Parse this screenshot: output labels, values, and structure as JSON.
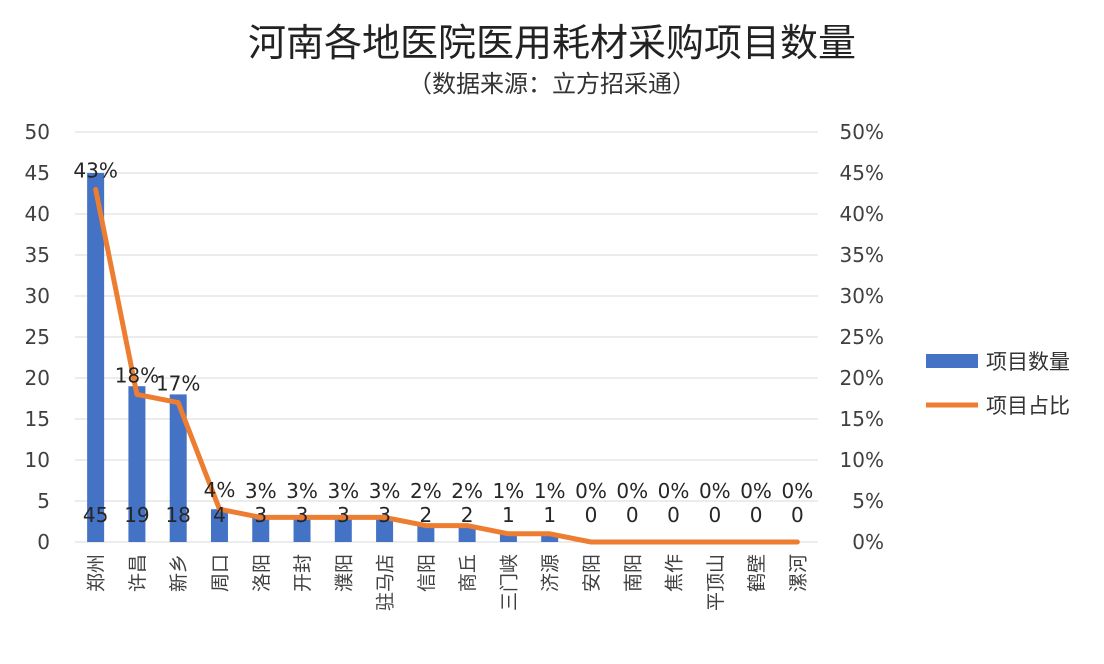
{
  "chart_data": {
    "type": "bar",
    "title": "河南各地医院医用耗材采购项目数量",
    "subtitle": "（数据来源：立方招采通）",
    "categories": [
      "郑州",
      "许昌",
      "新乡",
      "周口",
      "洛阳",
      "开封",
      "濮阳",
      "驻马店",
      "信阳",
      "商丘",
      "三门峡",
      "济源",
      "安阳",
      "南阳",
      "焦作",
      "平顶山",
      "鹤壁",
      "漯河"
    ],
    "series": [
      {
        "name": "项目数量",
        "type": "bar",
        "axis": "left",
        "color": "#4472C4",
        "values": [
          45,
          19,
          18,
          4,
          3,
          3,
          3,
          3,
          2,
          2,
          1,
          1,
          0,
          0,
          0,
          0,
          0,
          0
        ],
        "labels": [
          "45",
          "19",
          "18",
          "4",
          "3",
          "3",
          "3",
          "3",
          "2",
          "2",
          "1",
          "1",
          "0",
          "0",
          "0",
          "0",
          "0",
          "0"
        ]
      },
      {
        "name": "项目占比",
        "type": "line",
        "axis": "right",
        "color": "#ED7D31",
        "values": [
          43,
          18,
          17,
          4,
          3,
          3,
          3,
          3,
          2,
          2,
          1,
          1,
          0,
          0,
          0,
          0,
          0,
          0
        ],
        "labels": [
          "43%",
          "18%",
          "17%",
          "4%",
          "3%",
          "3%",
          "3%",
          "3%",
          "2%",
          "2%",
          "1%",
          "1%",
          "0%",
          "0%",
          "0%",
          "0%",
          "0%",
          "0%"
        ]
      }
    ],
    "y_left": {
      "min": 0,
      "max": 50,
      "ticks": [
        "0",
        "5",
        "10",
        "15",
        "20",
        "25",
        "30",
        "35",
        "40",
        "45",
        "50"
      ]
    },
    "y_right": {
      "min": 0,
      "max": 50,
      "ticks": [
        "0%",
        "5%",
        "10%",
        "15%",
        "20%",
        "25%",
        "30%",
        "35%",
        "40%",
        "45%",
        "50%"
      ]
    },
    "grid": true,
    "legend": "right"
  }
}
